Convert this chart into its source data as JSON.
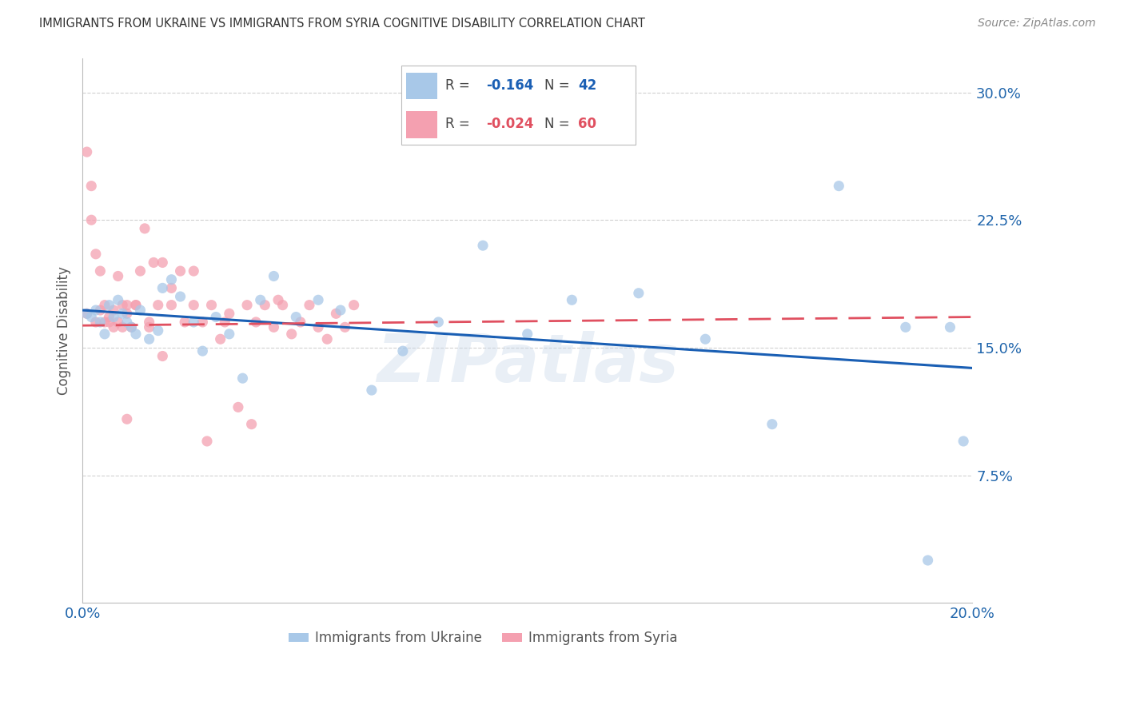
{
  "title": "IMMIGRANTS FROM UKRAINE VS IMMIGRANTS FROM SYRIA COGNITIVE DISABILITY CORRELATION CHART",
  "source": "Source: ZipAtlas.com",
  "ylabel": "Cognitive Disability",
  "ukraine_R": -0.164,
  "ukraine_N": 42,
  "syria_R": -0.024,
  "syria_N": 60,
  "ukraine_color": "#a8c8e8",
  "syria_color": "#f4a0b0",
  "ukraine_line_color": "#1a5fb4",
  "syria_line_color": "#e05060",
  "watermark": "ZIPatlas",
  "xlim": [
    0.0,
    0.2
  ],
  "ylim": [
    0.0,
    0.32
  ],
  "ytick_vals": [
    0.075,
    0.15,
    0.225,
    0.3
  ],
  "ytick_labels": [
    "7.5%",
    "15.0%",
    "22.5%",
    "30.0%"
  ],
  "xtick_vals": [
    0.0,
    0.05,
    0.1,
    0.15,
    0.2
  ],
  "xtick_labels": [
    "0.0%",
    "",
    "",
    "",
    "20.0%"
  ],
  "ukraine_x": [
    0.001,
    0.002,
    0.003,
    0.004,
    0.005,
    0.006,
    0.007,
    0.008,
    0.009,
    0.01,
    0.011,
    0.012,
    0.013,
    0.015,
    0.017,
    0.018,
    0.02,
    0.022,
    0.025,
    0.027,
    0.03,
    0.033,
    0.036,
    0.04,
    0.043,
    0.048,
    0.053,
    0.058,
    0.065,
    0.072,
    0.08,
    0.09,
    0.1,
    0.11,
    0.125,
    0.14,
    0.155,
    0.17,
    0.185,
    0.19,
    0.195,
    0.198
  ],
  "ukraine_y": [
    0.17,
    0.168,
    0.172,
    0.165,
    0.158,
    0.175,
    0.168,
    0.178,
    0.17,
    0.165,
    0.162,
    0.158,
    0.172,
    0.155,
    0.16,
    0.185,
    0.19,
    0.18,
    0.165,
    0.148,
    0.168,
    0.158,
    0.132,
    0.178,
    0.192,
    0.168,
    0.178,
    0.172,
    0.125,
    0.148,
    0.165,
    0.21,
    0.158,
    0.178,
    0.182,
    0.155,
    0.105,
    0.245,
    0.162,
    0.025,
    0.162,
    0.095
  ],
  "syria_x": [
    0.001,
    0.001,
    0.002,
    0.002,
    0.003,
    0.003,
    0.004,
    0.004,
    0.005,
    0.005,
    0.006,
    0.006,
    0.007,
    0.007,
    0.008,
    0.008,
    0.009,
    0.009,
    0.01,
    0.01,
    0.011,
    0.012,
    0.013,
    0.014,
    0.015,
    0.016,
    0.017,
    0.018,
    0.02,
    0.022,
    0.023,
    0.025,
    0.027,
    0.029,
    0.031,
    0.033,
    0.035,
    0.037,
    0.039,
    0.041,
    0.043,
    0.045,
    0.047,
    0.049,
    0.051,
    0.053,
    0.055,
    0.057,
    0.059,
    0.061,
    0.01,
    0.012,
    0.015,
    0.018,
    0.02,
    0.025,
    0.028,
    0.032,
    0.038,
    0.044
  ],
  "syria_y": [
    0.17,
    0.265,
    0.225,
    0.245,
    0.165,
    0.205,
    0.172,
    0.195,
    0.165,
    0.175,
    0.168,
    0.165,
    0.162,
    0.172,
    0.192,
    0.165,
    0.175,
    0.162,
    0.17,
    0.175,
    0.162,
    0.175,
    0.195,
    0.22,
    0.165,
    0.2,
    0.175,
    0.2,
    0.175,
    0.195,
    0.165,
    0.195,
    0.165,
    0.175,
    0.155,
    0.17,
    0.115,
    0.175,
    0.165,
    0.175,
    0.162,
    0.175,
    0.158,
    0.165,
    0.175,
    0.162,
    0.155,
    0.17,
    0.162,
    0.175,
    0.108,
    0.175,
    0.162,
    0.145,
    0.185,
    0.175,
    0.095,
    0.165,
    0.105,
    0.178
  ],
  "ukraine_line_x0": 0.0,
  "ukraine_line_x1": 0.2,
  "ukraine_line_y0": 0.172,
  "ukraine_line_y1": 0.138,
  "syria_line_x0": 0.0,
  "syria_line_x1": 0.2,
  "syria_line_y0": 0.163,
  "syria_line_y1": 0.168,
  "background_color": "#ffffff",
  "grid_color": "#cccccc",
  "axis_color": "#2166ac",
  "title_color": "#333333",
  "legend_box_color": "#aaaaaa"
}
